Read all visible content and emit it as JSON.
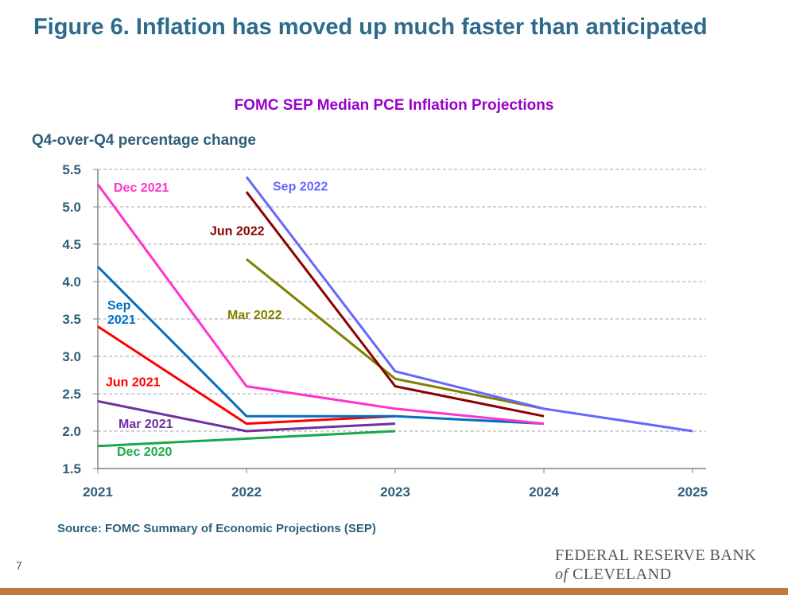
{
  "header": {
    "title": "Figure 6. Inflation has moved up much faster than anticipated"
  },
  "footer": {
    "source": "Source: FOMC Summary of Economic Projections (SEP)",
    "page_number": "7",
    "logo_line1": "FEDERAL RESERVE BANK",
    "logo_of": "of",
    "logo_line2": "CLEVELAND"
  },
  "chart_data": {
    "type": "line",
    "title": "FOMC SEP Median PCE Inflation Projections",
    "ylabel": "Q4-over-Q4 percentage change",
    "xlabel": "",
    "x": [
      "2021",
      "2022",
      "2023",
      "2024",
      "2025"
    ],
    "ylim": [
      1.5,
      5.5
    ],
    "yticks": [
      "1.5",
      "2.0",
      "2.5",
      "3.0",
      "3.5",
      "4.0",
      "4.5",
      "5.0",
      "5.5"
    ],
    "grid": "horizontal dashed",
    "legend": "inline labels",
    "series": [
      {
        "name": "Dec 2020",
        "color": "#1aa84a",
        "points": [
          [
            "2021",
            1.8
          ],
          [
            "2023",
            2.0
          ]
        ]
      },
      {
        "name": "Mar 2021",
        "color": "#7030a0",
        "points": [
          [
            "2021",
            2.4
          ],
          [
            "2022",
            2.0
          ],
          [
            "2023",
            2.1
          ]
        ]
      },
      {
        "name": "Jun 2021",
        "color": "#ff0000",
        "points": [
          [
            "2021",
            3.4
          ],
          [
            "2022",
            2.1
          ],
          [
            "2023",
            2.2
          ]
        ]
      },
      {
        "name": "Sep 2021",
        "color": "#0070c0",
        "points": [
          [
            "2021",
            4.2
          ],
          [
            "2022",
            2.2
          ],
          [
            "2023",
            2.2
          ],
          [
            "2024",
            2.1
          ]
        ]
      },
      {
        "name": "Dec 2021",
        "color": "#ff33cc",
        "points": [
          [
            "2021",
            5.3
          ],
          [
            "2022",
            2.6
          ],
          [
            "2023",
            2.3
          ],
          [
            "2024",
            2.1
          ]
        ]
      },
      {
        "name": "Mar 2022",
        "color": "#808000",
        "points": [
          [
            "2022",
            4.3
          ],
          [
            "2023",
            2.7
          ],
          [
            "2024",
            2.3
          ]
        ]
      },
      {
        "name": "Jun 2022",
        "color": "#8b0000",
        "points": [
          [
            "2022",
            5.2
          ],
          [
            "2023",
            2.6
          ],
          [
            "2024",
            2.2
          ]
        ]
      },
      {
        "name": "Sep 2022",
        "color": "#6666ff",
        "points": [
          [
            "2022",
            5.4
          ],
          [
            "2023",
            2.8
          ],
          [
            "2024",
            2.3
          ],
          [
            "2025",
            2.0
          ]
        ]
      }
    ],
    "series_labels": [
      {
        "series": "Dec 2021",
        "lines": [
          "Dec 2021"
        ],
        "x": "2021",
        "y": 5.2,
        "dx": 20
      },
      {
        "series": "Sep 2022",
        "lines": [
          "Sep 2022"
        ],
        "x": "2022",
        "y": 5.22,
        "dx": 33
      },
      {
        "series": "Jun 2022",
        "lines": [
          "Jun 2022"
        ],
        "x": "2022",
        "y": 4.62,
        "dx": -46
      },
      {
        "series": "Mar 2022",
        "lines": [
          "Mar 2022"
        ],
        "x": "2022",
        "y": 3.5,
        "dx": -24
      },
      {
        "series": "Sep 2021",
        "lines": [
          "Sep",
          "2021"
        ],
        "x": "2021",
        "y": 3.63,
        "dx": 12
      },
      {
        "series": "Jun 2021",
        "lines": [
          "Jun 2021"
        ],
        "x": "2021",
        "y": 2.6,
        "dx": 10
      },
      {
        "series": "Mar 2021",
        "lines": [
          "Mar 2021"
        ],
        "x": "2021",
        "y": 2.04,
        "dx": 26
      },
      {
        "series": "Dec 2020",
        "lines": [
          "Dec 2020"
        ],
        "x": "2021",
        "y": 1.67,
        "dx": 24
      }
    ]
  }
}
